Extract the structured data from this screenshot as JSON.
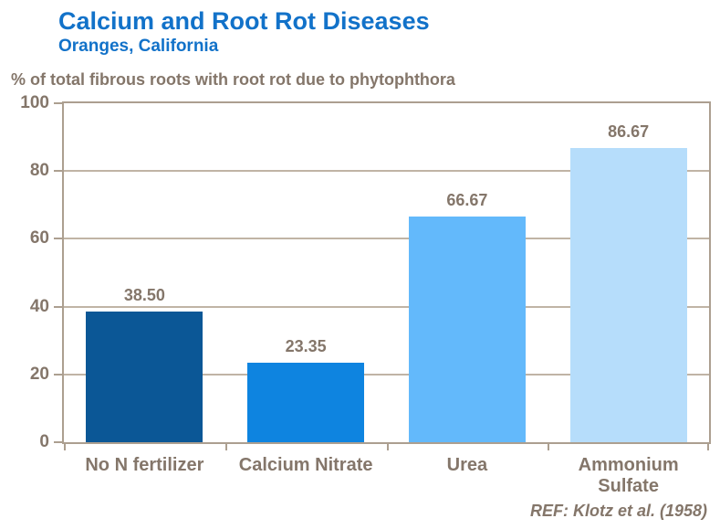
{
  "header": {
    "title": "Calcium and Root Rot Diseases",
    "subtitle": "Oranges, California",
    "title_color": "#1272C9"
  },
  "chart_data": {
    "type": "bar",
    "title": "Calcium and Root Rot Diseases",
    "subtitle": "Oranges, California",
    "axis_title": "% of total fibrous roots with root rot due to phytophthora",
    "categories": [
      "No N fertilizer",
      "Calcium Nitrate",
      "Urea",
      "Ammonium Sulfate"
    ],
    "values": [
      38.5,
      23.35,
      66.67,
      86.67
    ],
    "value_labels": [
      "38.50",
      "23.35",
      "66.67",
      "86.67"
    ],
    "bar_colors": [
      "#0B5796",
      "#0E84E0",
      "#63B9FB",
      "#B6DDFB"
    ],
    "y_ticks": [
      0,
      20,
      40,
      60,
      80,
      100
    ],
    "ylim": [
      0,
      100
    ],
    "xlabel": "",
    "ylabel": "% of total fibrous roots with root rot due to phytophthora",
    "grid": true,
    "legend": false,
    "plot_border_color": "#AC9F90",
    "gridline_color": "#C0B4A5",
    "label_color": "#84766A"
  },
  "footer": {
    "reference": "REF: Klotz et al. (1958)"
  }
}
